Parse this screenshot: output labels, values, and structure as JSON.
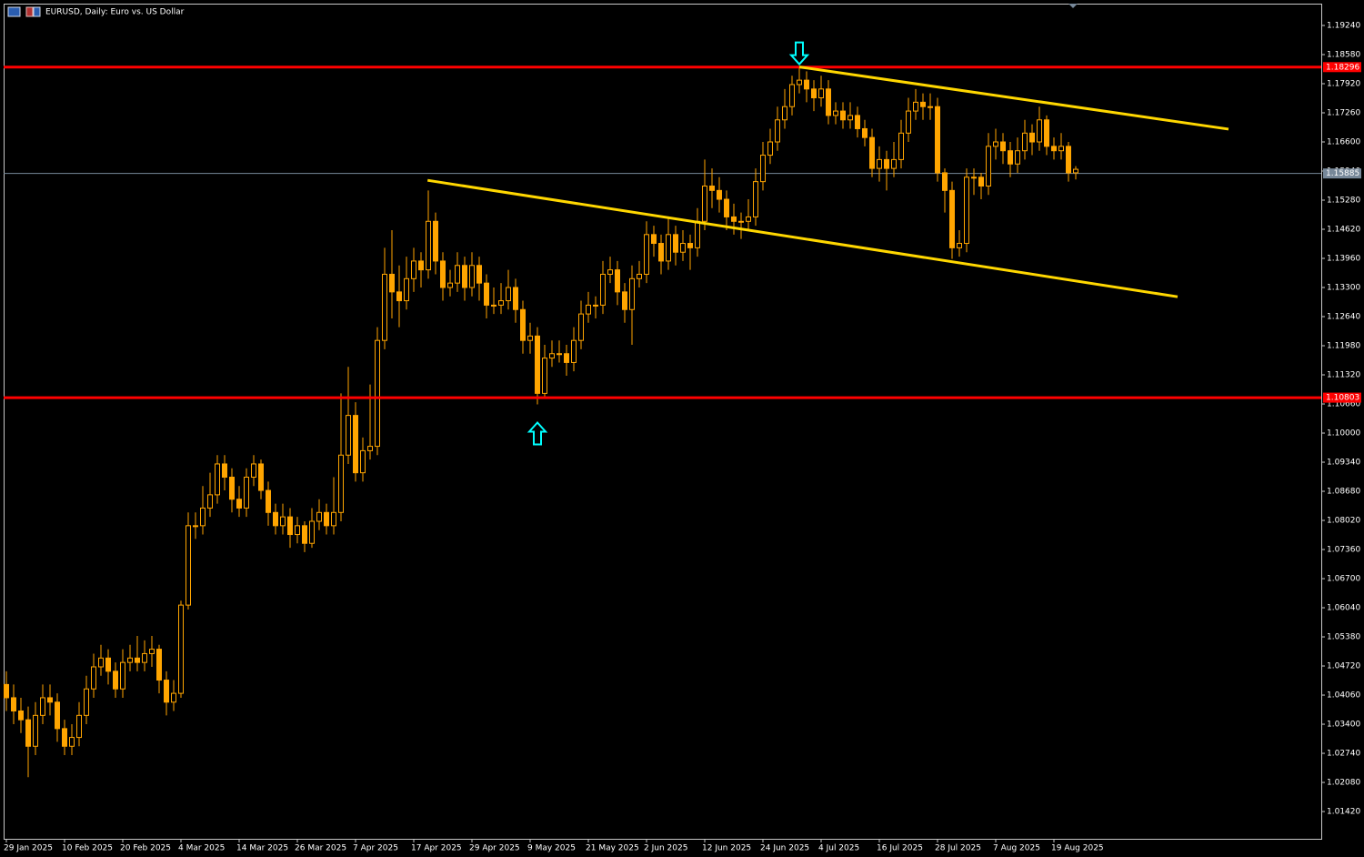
{
  "chart_data": {
    "type": "candlestick",
    "title": "EURUSD, Daily:  Euro vs. US Dollar",
    "color": "#ffa500",
    "bull_fill": "#000000",
    "ylim": [
      1.00802,
      1.19735
    ],
    "yticks": [
      {
        "value": 1.1924,
        "label": "1.19240"
      },
      {
        "value": 1.1858,
        "label": "1.18580"
      },
      {
        "value": 1.1792,
        "label": "1.17920"
      },
      {
        "value": 1.1726,
        "label": "1.17260"
      },
      {
        "value": 1.166,
        "label": "1.16600"
      },
      {
        "value": 1.1594,
        "label": "1.15940"
      },
      {
        "value": 1.1528,
        "label": "1.15280"
      },
      {
        "value": 1.1462,
        "label": "1.14620"
      },
      {
        "value": 1.1396,
        "label": "1.13960"
      },
      {
        "value": 1.133,
        "label": "1.13300"
      },
      {
        "value": 1.1264,
        "label": "1.12640"
      },
      {
        "value": 1.1198,
        "label": "1.11980"
      },
      {
        "value": 1.1132,
        "label": "1.11320"
      },
      {
        "value": 1.1066,
        "label": "1.10660"
      },
      {
        "value": 1.1,
        "label": "1.10000"
      },
      {
        "value": 1.0934,
        "label": "1.09340"
      },
      {
        "value": 1.0868,
        "label": "1.08680"
      },
      {
        "value": 1.0802,
        "label": "1.08020"
      },
      {
        "value": 1.0736,
        "label": "1.07360"
      },
      {
        "value": 1.067,
        "label": "1.06700"
      },
      {
        "value": 1.0604,
        "label": "1.06040"
      },
      {
        "value": 1.0538,
        "label": "1.05380"
      },
      {
        "value": 1.0472,
        "label": "1.04720"
      },
      {
        "value": 1.0406,
        "label": "1.04060"
      },
      {
        "value": 1.034,
        "label": "1.03400"
      },
      {
        "value": 1.0274,
        "label": "1.02740"
      },
      {
        "value": 1.0208,
        "label": "1.02080"
      },
      {
        "value": 1.0142,
        "label": "1.01420"
      }
    ],
    "categories": [
      "29 Jan 2025",
      null,
      null,
      null,
      null,
      null,
      null,
      null,
      "10 Feb 2025",
      null,
      null,
      null,
      null,
      null,
      null,
      null,
      "20 Feb 2025",
      null,
      null,
      null,
      null,
      null,
      null,
      null,
      "4 Mar 2025",
      null,
      null,
      null,
      null,
      null,
      null,
      null,
      "14 Mar 2025",
      null,
      null,
      null,
      null,
      null,
      null,
      null,
      "26 Mar 2025",
      null,
      null,
      null,
      null,
      null,
      null,
      null,
      "7 Apr 2025",
      null,
      null,
      null,
      null,
      null,
      null,
      null,
      "17 Apr 2025",
      null,
      null,
      null,
      null,
      null,
      null,
      null,
      "29 Apr 2025",
      null,
      null,
      null,
      null,
      null,
      null,
      null,
      "9 May 2025",
      null,
      null,
      null,
      null,
      null,
      null,
      null,
      "21 May 2025",
      null,
      null,
      null,
      null,
      null,
      null,
      null,
      "2 Jun 2025",
      null,
      null,
      null,
      null,
      null,
      null,
      null,
      "12 Jun 2025",
      null,
      null,
      null,
      null,
      null,
      null,
      null,
      "24 Jun 2025",
      null,
      null,
      null,
      null,
      null,
      null,
      null,
      "4 Jul 2025",
      null,
      null,
      null,
      null,
      null,
      null,
      null,
      "16 Jul 2025",
      null,
      null,
      null,
      null,
      null,
      null,
      null,
      "28 Jul 2025",
      null,
      null,
      null,
      null,
      null,
      null,
      null,
      "7 Aug 2025",
      null,
      null,
      null,
      null,
      null,
      null,
      null,
      "19 Aug 2025",
      null,
      null,
      null
    ],
    "ohlc": [
      [
        1.043,
        1.046,
        1.037,
        1.04
      ],
      [
        1.04,
        1.043,
        1.034,
        1.037
      ],
      [
        1.037,
        1.04,
        1.032,
        1.035
      ],
      [
        1.035,
        1.038,
        1.022,
        1.029
      ],
      [
        1.029,
        1.039,
        1.027,
        1.036
      ],
      [
        1.036,
        1.043,
        1.034,
        1.04
      ],
      [
        1.04,
        1.043,
        1.036,
        1.039
      ],
      [
        1.039,
        1.041,
        1.03,
        1.033
      ],
      [
        1.033,
        1.035,
        1.027,
        1.029
      ],
      [
        1.029,
        1.034,
        1.027,
        1.031
      ],
      [
        1.031,
        1.039,
        1.029,
        1.036
      ],
      [
        1.036,
        1.045,
        1.034,
        1.042
      ],
      [
        1.042,
        1.05,
        1.04,
        1.047
      ],
      [
        1.047,
        1.052,
        1.045,
        1.049
      ],
      [
        1.049,
        1.051,
        1.043,
        1.046
      ],
      [
        1.046,
        1.048,
        1.04,
        1.042
      ],
      [
        1.042,
        1.051,
        1.04,
        1.048
      ],
      [
        1.048,
        1.052,
        1.046,
        1.049
      ],
      [
        1.049,
        1.054,
        1.046,
        1.048
      ],
      [
        1.048,
        1.053,
        1.046,
        1.05
      ],
      [
        1.05,
        1.054,
        1.047,
        1.051
      ],
      [
        1.051,
        1.052,
        1.041,
        1.044
      ],
      [
        1.044,
        1.046,
        1.036,
        1.039
      ],
      [
        1.039,
        1.044,
        1.037,
        1.041
      ],
      [
        1.041,
        1.062,
        1.04,
        1.061
      ],
      [
        1.061,
        1.082,
        1.06,
        1.079
      ],
      [
        1.079,
        1.082,
        1.076,
        1.079
      ],
      [
        1.079,
        1.088,
        1.077,
        1.083
      ],
      [
        1.083,
        1.091,
        1.081,
        1.086
      ],
      [
        1.086,
        1.095,
        1.084,
        1.093
      ],
      [
        1.093,
        1.095,
        1.087,
        1.09
      ],
      [
        1.09,
        1.092,
        1.082,
        1.085
      ],
      [
        1.085,
        1.088,
        1.081,
        1.083
      ],
      [
        1.083,
        1.092,
        1.081,
        1.09
      ],
      [
        1.09,
        1.095,
        1.088,
        1.093
      ],
      [
        1.093,
        1.094,
        1.085,
        1.087
      ],
      [
        1.087,
        1.089,
        1.079,
        1.082
      ],
      [
        1.082,
        1.084,
        1.077,
        1.079
      ],
      [
        1.079,
        1.084,
        1.077,
        1.081
      ],
      [
        1.081,
        1.083,
        1.074,
        1.077
      ],
      [
        1.077,
        1.081,
        1.075,
        1.079
      ],
      [
        1.079,
        1.08,
        1.073,
        1.075
      ],
      [
        1.075,
        1.083,
        1.074,
        1.08
      ],
      [
        1.08,
        1.085,
        1.078,
        1.082
      ],
      [
        1.082,
        1.084,
        1.077,
        1.079
      ],
      [
        1.079,
        1.09,
        1.077,
        1.082
      ],
      [
        1.082,
        1.109,
        1.08,
        1.095
      ],
      [
        1.095,
        1.115,
        1.093,
        1.104
      ],
      [
        1.104,
        1.107,
        1.089,
        1.091
      ],
      [
        1.091,
        1.099,
        1.089,
        1.096
      ],
      [
        1.096,
        1.111,
        1.094,
        1.097
      ],
      [
        1.097,
        1.124,
        1.095,
        1.121
      ],
      [
        1.121,
        1.142,
        1.119,
        1.136
      ],
      [
        1.136,
        1.146,
        1.126,
        1.132
      ],
      [
        1.132,
        1.138,
        1.124,
        1.13
      ],
      [
        1.13,
        1.14,
        1.128,
        1.135
      ],
      [
        1.135,
        1.142,
        1.132,
        1.139
      ],
      [
        1.139,
        1.141,
        1.133,
        1.137
      ],
      [
        1.137,
        1.155,
        1.135,
        1.148
      ],
      [
        1.148,
        1.15,
        1.136,
        1.139
      ],
      [
        1.139,
        1.141,
        1.13,
        1.133
      ],
      [
        1.133,
        1.137,
        1.131,
        1.134
      ],
      [
        1.134,
        1.141,
        1.132,
        1.138
      ],
      [
        1.138,
        1.14,
        1.13,
        1.133
      ],
      [
        1.133,
        1.141,
        1.131,
        1.138
      ],
      [
        1.138,
        1.14,
        1.13,
        1.134
      ],
      [
        1.134,
        1.136,
        1.126,
        1.129
      ],
      [
        1.129,
        1.133,
        1.127,
        1.129
      ],
      [
        1.129,
        1.134,
        1.127,
        1.13
      ],
      [
        1.13,
        1.137,
        1.128,
        1.133
      ],
      [
        1.133,
        1.135,
        1.125,
        1.128
      ],
      [
        1.128,
        1.13,
        1.118,
        1.121
      ],
      [
        1.121,
        1.125,
        1.118,
        1.122
      ],
      [
        1.122,
        1.124,
        1.1065,
        1.109
      ],
      [
        1.109,
        1.12,
        1.108,
        1.117
      ],
      [
        1.117,
        1.121,
        1.115,
        1.118
      ],
      [
        1.118,
        1.121,
        1.116,
        1.118
      ],
      [
        1.118,
        1.12,
        1.113,
        1.116
      ],
      [
        1.116,
        1.124,
        1.114,
        1.121
      ],
      [
        1.121,
        1.13,
        1.119,
        1.127
      ],
      [
        1.127,
        1.132,
        1.125,
        1.129
      ],
      [
        1.129,
        1.131,
        1.126,
        1.129
      ],
      [
        1.129,
        1.139,
        1.127,
        1.136
      ],
      [
        1.136,
        1.14,
        1.134,
        1.137
      ],
      [
        1.137,
        1.139,
        1.129,
        1.132
      ],
      [
        1.132,
        1.134,
        1.125,
        1.128
      ],
      [
        1.128,
        1.138,
        1.12,
        1.135
      ],
      [
        1.135,
        1.139,
        1.133,
        1.136
      ],
      [
        1.136,
        1.148,
        1.134,
        1.145
      ],
      [
        1.145,
        1.147,
        1.14,
        1.143
      ],
      [
        1.143,
        1.145,
        1.136,
        1.139
      ],
      [
        1.139,
        1.149,
        1.137,
        1.145
      ],
      [
        1.145,
        1.147,
        1.138,
        1.141
      ],
      [
        1.141,
        1.146,
        1.139,
        1.143
      ],
      [
        1.143,
        1.145,
        1.137,
        1.142
      ],
      [
        1.142,
        1.151,
        1.14,
        1.148
      ],
      [
        1.148,
        1.162,
        1.146,
        1.156
      ],
      [
        1.156,
        1.16,
        1.151,
        1.155
      ],
      [
        1.155,
        1.158,
        1.15,
        1.153
      ],
      [
        1.153,
        1.155,
        1.146,
        1.149
      ],
      [
        1.149,
        1.152,
        1.145,
        1.148
      ],
      [
        1.148,
        1.15,
        1.144,
        1.148
      ],
      [
        1.148,
        1.153,
        1.146,
        1.149
      ],
      [
        1.149,
        1.16,
        1.147,
        1.157
      ],
      [
        1.157,
        1.166,
        1.155,
        1.163
      ],
      [
        1.163,
        1.169,
        1.161,
        1.166
      ],
      [
        1.166,
        1.174,
        1.164,
        1.171
      ],
      [
        1.171,
        1.178,
        1.169,
        1.174
      ],
      [
        1.174,
        1.181,
        1.172,
        1.179
      ],
      [
        1.179,
        1.183,
        1.177,
        1.18
      ],
      [
        1.18,
        1.182,
        1.175,
        1.178
      ],
      [
        1.178,
        1.18,
        1.173,
        1.176
      ],
      [
        1.176,
        1.181,
        1.174,
        1.178
      ],
      [
        1.178,
        1.18,
        1.17,
        1.172
      ],
      [
        1.172,
        1.175,
        1.17,
        1.173
      ],
      [
        1.173,
        1.175,
        1.169,
        1.171
      ],
      [
        1.171,
        1.175,
        1.169,
        1.172
      ],
      [
        1.172,
        1.174,
        1.167,
        1.169
      ],
      [
        1.169,
        1.171,
        1.165,
        1.167
      ],
      [
        1.167,
        1.169,
        1.158,
        1.16
      ],
      [
        1.16,
        1.165,
        1.157,
        1.162
      ],
      [
        1.162,
        1.164,
        1.155,
        1.16
      ],
      [
        1.16,
        1.166,
        1.158,
        1.162
      ],
      [
        1.162,
        1.171,
        1.16,
        1.168
      ],
      [
        1.168,
        1.176,
        1.166,
        1.173
      ],
      [
        1.173,
        1.178,
        1.171,
        1.175
      ],
      [
        1.175,
        1.177,
        1.171,
        1.174
      ],
      [
        1.174,
        1.177,
        1.171,
        1.174
      ],
      [
        1.174,
        1.176,
        1.157,
        1.159
      ],
      [
        1.159,
        1.16,
        1.15,
        1.155
      ],
      [
        1.155,
        1.157,
        1.1395,
        1.142
      ],
      [
        1.142,
        1.146,
        1.14,
        1.143
      ],
      [
        1.143,
        1.16,
        1.141,
        1.158
      ],
      [
        1.158,
        1.16,
        1.154,
        1.158
      ],
      [
        1.158,
        1.159,
        1.153,
        1.156
      ],
      [
        1.156,
        1.168,
        1.154,
        1.165
      ],
      [
        1.165,
        1.169,
        1.162,
        1.166
      ],
      [
        1.166,
        1.168,
        1.161,
        1.164
      ],
      [
        1.164,
        1.166,
        1.158,
        1.161
      ],
      [
        1.161,
        1.167,
        1.159,
        1.164
      ],
      [
        1.164,
        1.171,
        1.162,
        1.168
      ],
      [
        1.168,
        1.17,
        1.163,
        1.166
      ],
      [
        1.166,
        1.174,
        1.164,
        1.171
      ],
      [
        1.171,
        1.172,
        1.163,
        1.165
      ],
      [
        1.165,
        1.167,
        1.162,
        1.164
      ],
      [
        1.164,
        1.168,
        1.162,
        1.165
      ],
      [
        1.165,
        1.166,
        1.157,
        1.159
      ],
      [
        1.159,
        1.1605,
        1.1575,
        1.1598
      ]
    ],
    "levels": [
      {
        "value": 1.18296,
        "color": "#ff0000"
      },
      {
        "value": 1.10803,
        "color": "#ff0000"
      }
    ],
    "current_price": {
      "value": 1.15885,
      "color": "#778899"
    },
    "trendlines": [
      {
        "x": [
          109,
          168
        ],
        "y": [
          1.183,
          1.1689
        ],
        "color": "#ffd700"
      },
      {
        "x": [
          57.9,
          161
        ],
        "y": [
          1.1573,
          1.1309
        ],
        "color": "#ffd700"
      }
    ],
    "arrows": [
      {
        "index": 109,
        "direction": "down",
        "color": "#00ffff"
      },
      {
        "index": 73,
        "direction": "up",
        "color": "#00ffff"
      }
    ]
  }
}
